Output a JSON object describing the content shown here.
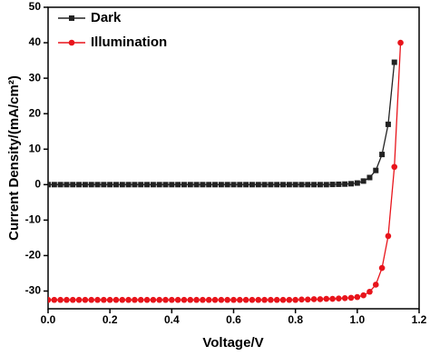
{
  "chart_data": {
    "type": "line",
    "xlabel": "Voltage/V",
    "ylabel": "Current Density/(mA/cm²)",
    "x": [
      0,
      0.02,
      0.04,
      0.06,
      0.08,
      0.1,
      0.12,
      0.14,
      0.16,
      0.18,
      0.2,
      0.22,
      0.24,
      0.26,
      0.28,
      0.3,
      0.32,
      0.34,
      0.36,
      0.38,
      0.4,
      0.42,
      0.44,
      0.46,
      0.48,
      0.5,
      0.52,
      0.54,
      0.56,
      0.58,
      0.6,
      0.62,
      0.64,
      0.66,
      0.68,
      0.7,
      0.72,
      0.74,
      0.76,
      0.78,
      0.8,
      0.82,
      0.84,
      0.86,
      0.88,
      0.9,
      0.92,
      0.94,
      0.96,
      0.98,
      1.0,
      1.02,
      1.04,
      1.06,
      1.08,
      1.1,
      1.12,
      1.14
    ],
    "series": [
      {
        "name": "Dark",
        "color": "#222222",
        "marker": "square",
        "values": [
          0,
          0,
          0,
          0,
          0,
          0,
          0,
          0,
          0,
          0,
          0,
          0,
          0,
          0,
          0,
          0,
          0,
          0,
          0,
          0,
          0,
          0,
          0,
          0,
          0,
          0,
          0,
          0,
          0,
          0,
          0,
          0,
          0,
          0,
          0,
          0,
          0,
          0,
          0,
          0,
          0,
          0,
          0,
          0,
          0,
          0,
          0.05,
          0.1,
          0.15,
          0.25,
          0.45,
          1,
          2,
          4,
          8.5,
          17,
          34.5,
          null
        ]
      },
      {
        "name": "Illumination",
        "color": "#e8141b",
        "marker": "circle",
        "values": [
          -32.5,
          -32.5,
          -32.5,
          -32.5,
          -32.5,
          -32.5,
          -32.5,
          -32.5,
          -32.5,
          -32.5,
          -32.5,
          -32.5,
          -32.5,
          -32.5,
          -32.5,
          -32.5,
          -32.5,
          -32.5,
          -32.5,
          -32.5,
          -32.5,
          -32.5,
          -32.5,
          -32.5,
          -32.5,
          -32.5,
          -32.5,
          -32.5,
          -32.5,
          -32.5,
          -32.5,
          -32.5,
          -32.5,
          -32.5,
          -32.5,
          -32.5,
          -32.5,
          -32.5,
          -32.5,
          -32.5,
          -32.5,
          -32.4,
          -32.4,
          -32.3,
          -32.3,
          -32.2,
          -32.2,
          -32.1,
          -32.0,
          -31.9,
          -31.7,
          -31.2,
          -30.2,
          -28.2,
          -23.5,
          -14.5,
          5,
          40
        ]
      }
    ],
    "xlim": [
      0,
      1.2
    ],
    "xticks": [
      {
        "value": 0,
        "label": "0.0"
      },
      0.2,
      0.4,
      0.6,
      0.8,
      {
        "value": 1,
        "label": "1.0"
      },
      1.2
    ],
    "ylim": [
      -35,
      50
    ],
    "yticks": [
      -30,
      -20,
      -10,
      0,
      10,
      20,
      30,
      40,
      50
    ],
    "legend": "upper-left"
  }
}
